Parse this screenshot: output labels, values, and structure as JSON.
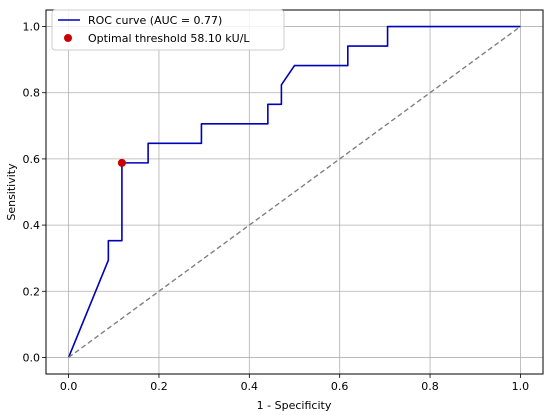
{
  "chart_data": {
    "type": "line",
    "title": "",
    "xlabel": "1 - Specificity",
    "ylabel": "Sensitivity",
    "xlim": [
      -0.05,
      1.05
    ],
    "ylim": [
      -0.05,
      1.05
    ],
    "xticks": [
      0.0,
      0.2,
      0.4,
      0.6,
      0.8,
      1.0
    ],
    "yticks": [
      0.0,
      0.2,
      0.4,
      0.6,
      0.8,
      1.0
    ],
    "xtick_labels": [
      "0.0",
      "0.2",
      "0.4",
      "0.6",
      "0.8",
      "1.0"
    ],
    "ytick_labels": [
      "0.0",
      "0.2",
      "0.4",
      "0.6",
      "0.8",
      "1.0"
    ],
    "grid": true,
    "legend_position": "top-left",
    "series": [
      {
        "name": "ROC curve (AUC = 0.77)",
        "color": "#0000bb",
        "style": "solid",
        "points": [
          [
            0.0,
            0.0
          ],
          [
            0.088,
            0.294
          ],
          [
            0.088,
            0.353
          ],
          [
            0.118,
            0.353
          ],
          [
            0.118,
            0.588
          ],
          [
            0.176,
            0.588
          ],
          [
            0.176,
            0.647
          ],
          [
            0.294,
            0.647
          ],
          [
            0.294,
            0.706
          ],
          [
            0.441,
            0.706
          ],
          [
            0.441,
            0.765
          ],
          [
            0.471,
            0.765
          ],
          [
            0.471,
            0.824
          ],
          [
            0.5,
            0.882
          ],
          [
            0.618,
            0.882
          ],
          [
            0.618,
            0.941
          ],
          [
            0.706,
            0.941
          ],
          [
            0.706,
            1.0
          ],
          [
            1.0,
            1.0
          ]
        ]
      },
      {
        "name": "",
        "color": "#808080",
        "style": "dashed",
        "points": [
          [
            0.0,
            0.0
          ],
          [
            1.0,
            1.0
          ]
        ]
      }
    ],
    "markers": [
      {
        "name": "Optimal threshold 58.10 kU/L",
        "x": 0.118,
        "y": 0.588,
        "color": "#cc0000"
      }
    ]
  }
}
